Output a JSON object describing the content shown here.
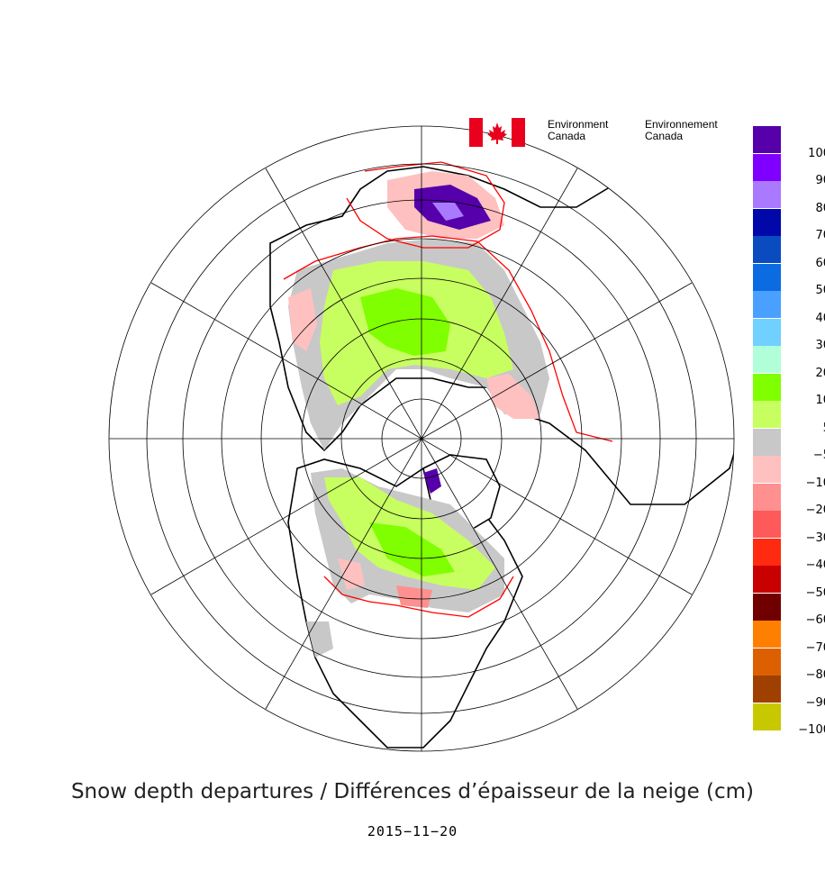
{
  "branding": {
    "agency_en_line1": "Environment",
    "agency_en_line2": "Canada",
    "agency_fr_line1": "Environnement",
    "agency_fr_line2": "Canada",
    "flag_red": "#e8001c"
  },
  "map": {
    "projection": "polar stereographic, North Pole centred",
    "graticule": true,
    "parallels_interval_deg": 10,
    "meridians_interval_deg": 30,
    "zero_contour_color": "#ff0000",
    "coastline_color": "#000000"
  },
  "legend": {
    "unit": "cm",
    "bins": [
      {
        "label": "100",
        "color": "#5500aa"
      },
      {
        "label": "90",
        "color": "#8000ff"
      },
      {
        "label": "80",
        "color": "#a97aff"
      },
      {
        "label": "70",
        "color": "#0008aa"
      },
      {
        "label": "60",
        "color": "#0a4cc0"
      },
      {
        "label": "50",
        "color": "#0a6ce0"
      },
      {
        "label": "40",
        "color": "#4aa0ff"
      },
      {
        "label": "30",
        "color": "#70d0ff"
      },
      {
        "label": "20",
        "color": "#b0ffd8"
      },
      {
        "label": "10",
        "color": "#80ff00"
      },
      {
        "label": "5",
        "color": "#c8ff60"
      },
      {
        "label": "−5",
        "color": "#c8c8c8"
      },
      {
        "label": "−10",
        "color": "#ffc0c0"
      },
      {
        "label": "−20",
        "color": "#ff9090"
      },
      {
        "label": "−30",
        "color": "#ff5a5a"
      },
      {
        "label": "−40",
        "color": "#ff2a10"
      },
      {
        "label": "−50",
        "color": "#c80000"
      },
      {
        "label": "−60",
        "color": "#700000"
      },
      {
        "label": "−70",
        "color": "#ff8000"
      },
      {
        "label": "−80",
        "color": "#dd6000"
      },
      {
        "label": "−90",
        "color": "#a04000"
      },
      {
        "label": "−100",
        "color": "#c8c800"
      }
    ]
  },
  "caption": "Snow depth departures / Différences d’épaisseur de la neige  (cm)",
  "date": "2015−11−20"
}
